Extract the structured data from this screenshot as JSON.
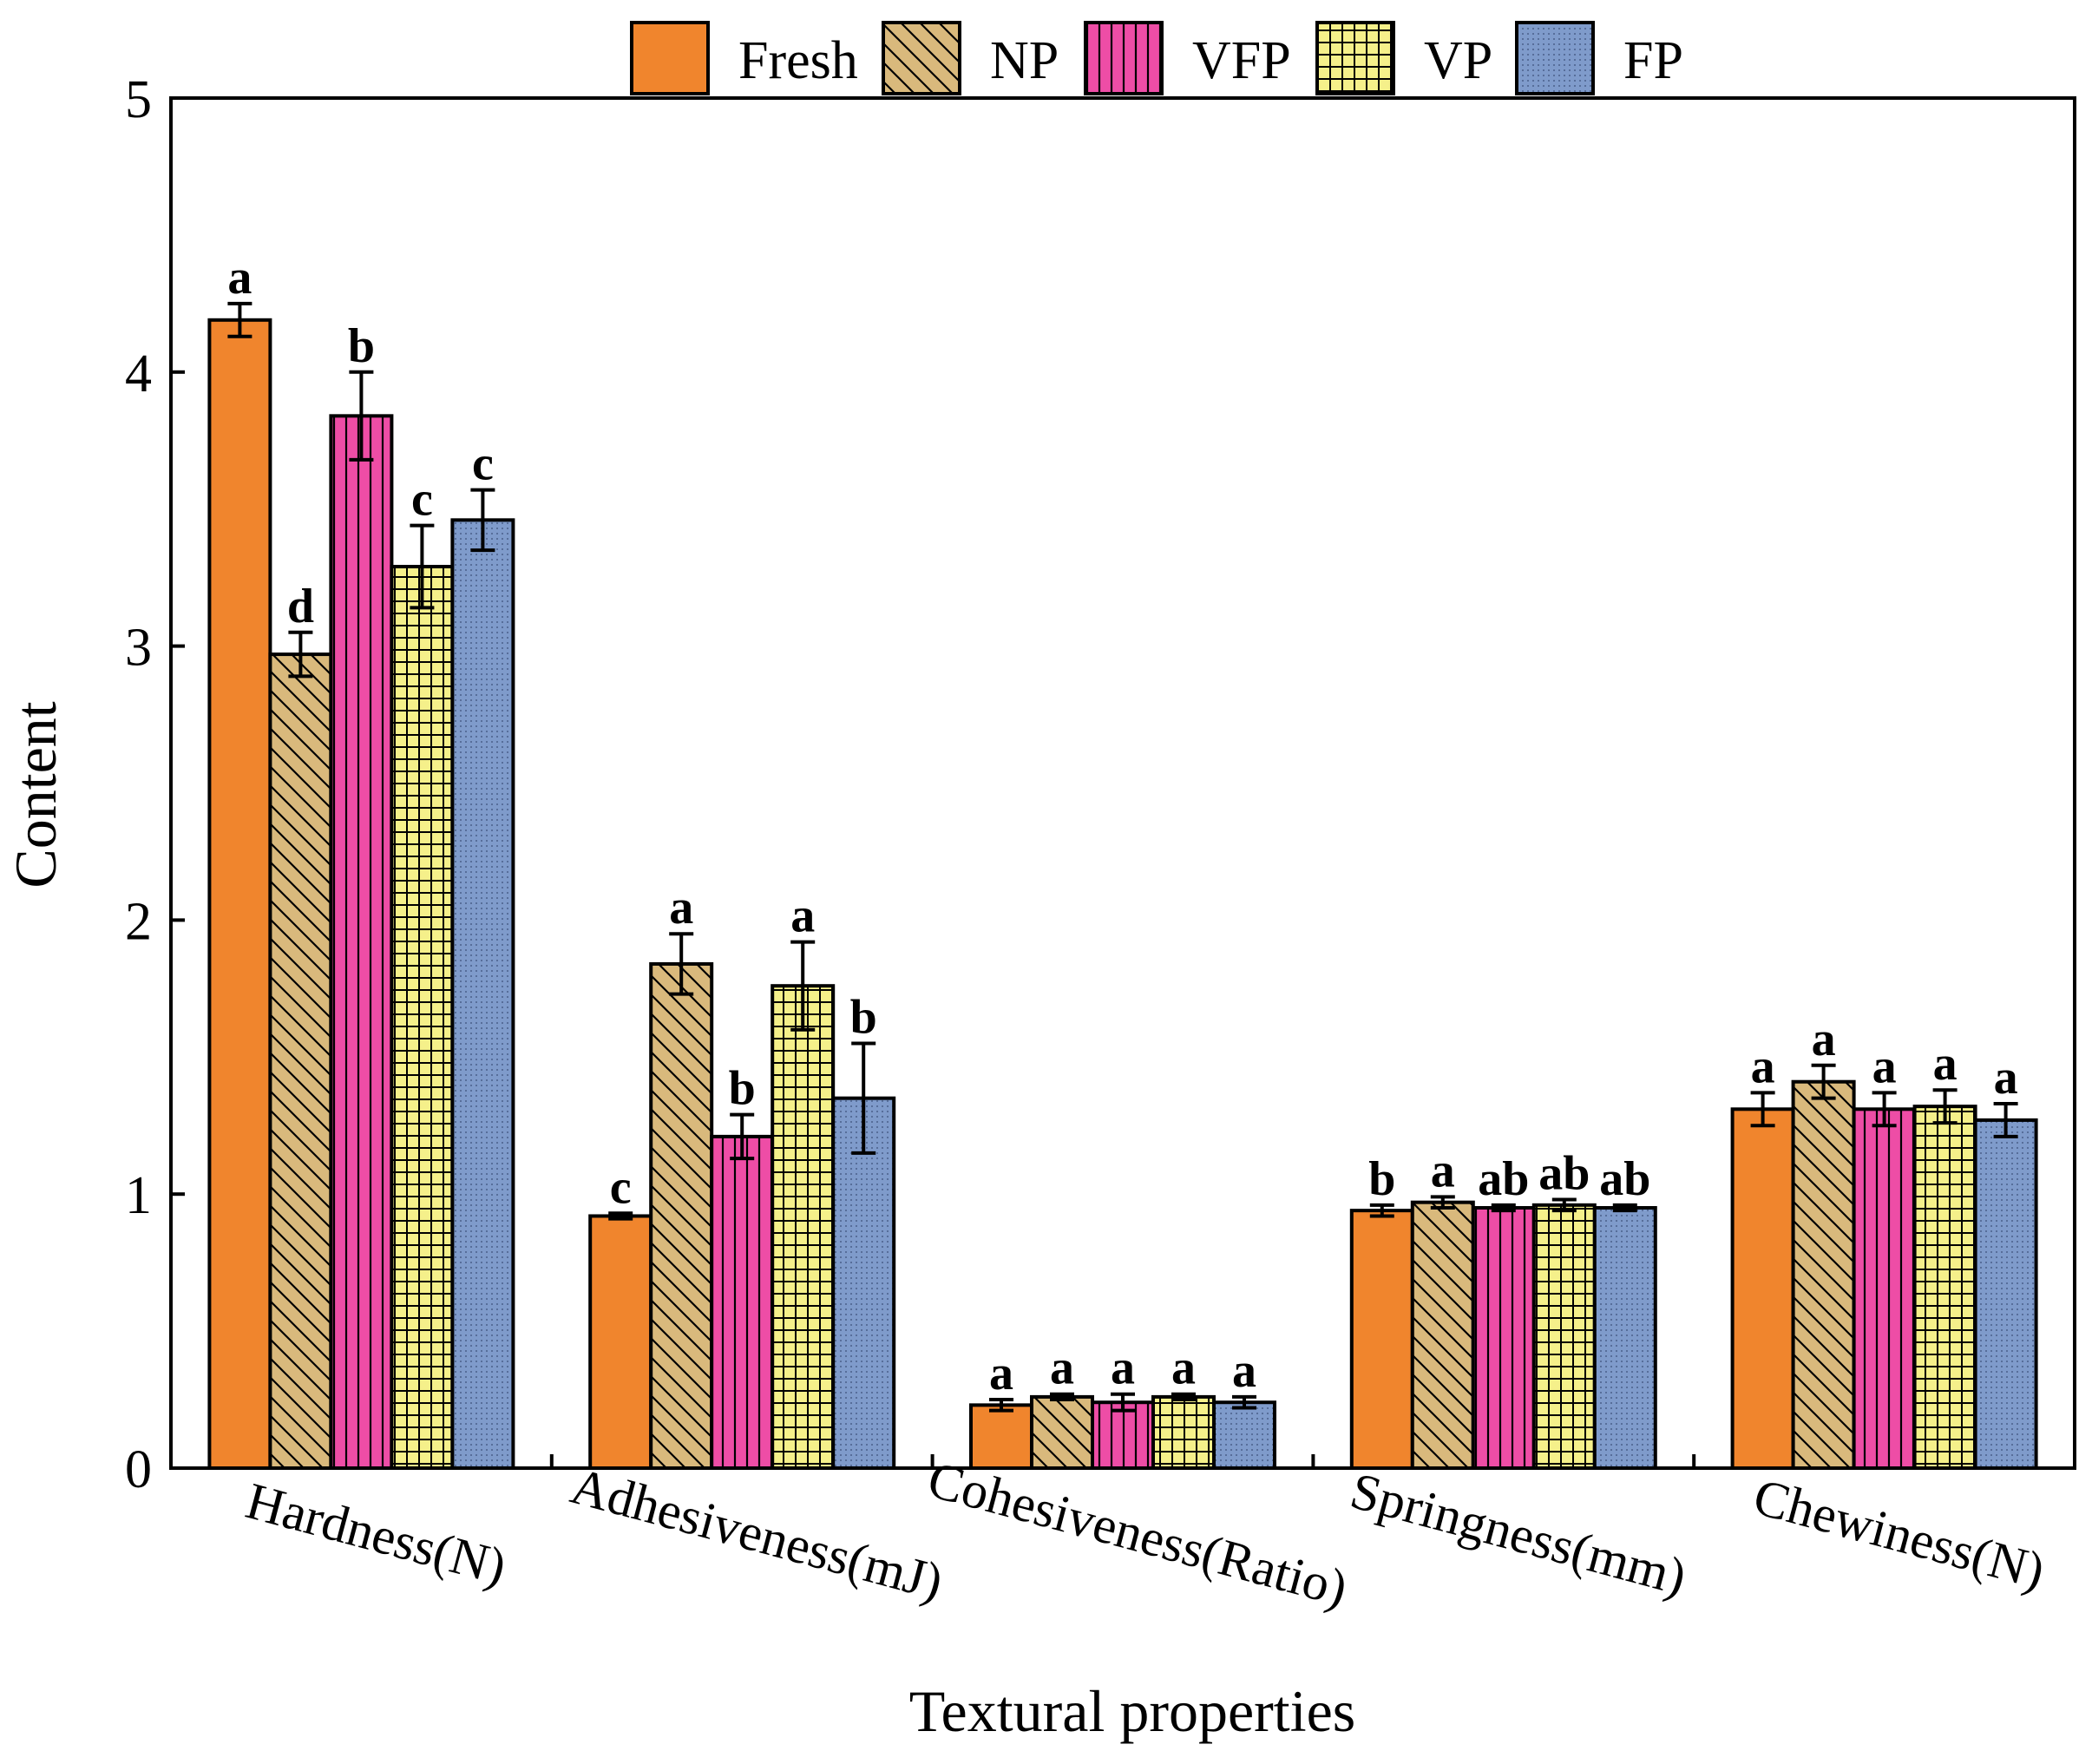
{
  "chart_data": {
    "type": "bar",
    "title": "",
    "xlabel": "Textural properties",
    "ylabel": "Content",
    "ylim": [
      0,
      5
    ],
    "yticks": [
      "0",
      "1",
      "2",
      "3",
      "4",
      "5"
    ],
    "legend_position": "top",
    "categories": [
      "Hardness(N)",
      "Adhesiveness(mJ)",
      "Cohesiveness(Ratio)",
      "Springness(mm)",
      "Chewiness(N)"
    ],
    "series": [
      {
        "name": "Fresh",
        "color": "#F0852D",
        "pattern": "solid",
        "values": [
          4.19,
          0.92,
          0.23,
          0.94,
          1.31
        ],
        "errors": [
          0.06,
          0.01,
          0.02,
          0.02,
          0.06
        ],
        "labels": [
          "a",
          "c",
          "a",
          "b",
          "a"
        ]
      },
      {
        "name": "NP",
        "color": "#D9B97C",
        "pattern": "diagonal",
        "values": [
          2.97,
          1.84,
          0.26,
          0.97,
          1.41
        ],
        "errors": [
          0.08,
          0.11,
          0.01,
          0.02,
          0.06
        ],
        "labels": [
          "d",
          "a",
          "a",
          "a",
          "a"
        ]
      },
      {
        "name": "VFP",
        "color": "#EE4DA6",
        "pattern": "vertical",
        "values": [
          3.84,
          1.21,
          0.24,
          0.95,
          1.31
        ],
        "errors": [
          0.16,
          0.08,
          0.03,
          0.01,
          0.06
        ],
        "labels": [
          "b",
          "b",
          "a",
          "ab",
          "a"
        ]
      },
      {
        "name": "VP",
        "color": "#F5F08A",
        "pattern": "grid",
        "values": [
          3.29,
          1.76,
          0.26,
          0.96,
          1.32
        ],
        "errors": [
          0.15,
          0.16,
          0.01,
          0.02,
          0.06
        ],
        "labels": [
          "c",
          "a",
          "a",
          "ab",
          "a"
        ]
      },
      {
        "name": "FP",
        "color": "#7F9BCB",
        "pattern": "dots",
        "values": [
          3.46,
          1.35,
          0.24,
          0.95,
          1.27
        ],
        "errors": [
          0.11,
          0.2,
          0.02,
          0.01,
          0.06
        ],
        "labels": [
          "c",
          "b",
          "a",
          "ab",
          "a"
        ]
      }
    ]
  }
}
